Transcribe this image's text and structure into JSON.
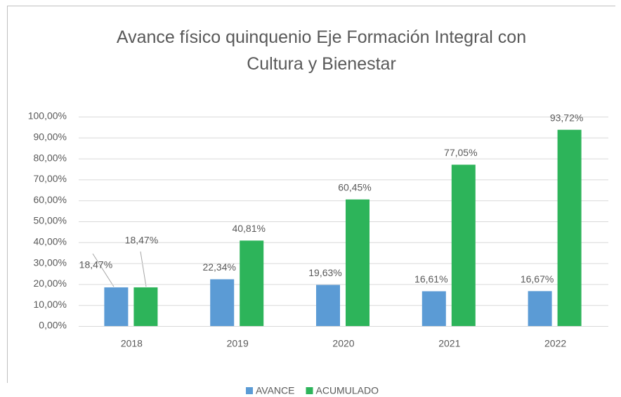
{
  "chart_data": {
    "type": "bar",
    "title": "Avance físico quinquenio Eje Formación Integral con Cultura y Bienestar",
    "categories": [
      "2018",
      "2019",
      "2020",
      "2021",
      "2022"
    ],
    "series": [
      {
        "name": "AVANCE",
        "color": "#5b9bd5",
        "values": [
          18.47,
          22.34,
          19.63,
          16.61,
          16.67
        ],
        "value_labels": [
          "18,47%",
          "22,34%",
          "19,63%",
          "16,61%",
          "16,67%"
        ]
      },
      {
        "name": "ACUMULADO",
        "color": "#2db45a",
        "values": [
          18.47,
          40.81,
          60.45,
          77.05,
          93.72
        ],
        "value_labels": [
          "18,47%",
          "40,81%",
          "60,45%",
          "77,05%",
          "93,72%"
        ]
      }
    ],
    "ylim": [
      0,
      100
    ],
    "yticks": [
      {
        "value": 0,
        "label": "0,00%"
      },
      {
        "value": 10,
        "label": "10,00%"
      },
      {
        "value": 20,
        "label": "20,00%"
      },
      {
        "value": 30,
        "label": "30,00%"
      },
      {
        "value": 40,
        "label": "40,00%"
      },
      {
        "value": 50,
        "label": "50,00%"
      },
      {
        "value": 60,
        "label": "60,00%"
      },
      {
        "value": 70,
        "label": "70,00%"
      },
      {
        "value": 80,
        "label": "80,00%"
      },
      {
        "value": 90,
        "label": "90,00%"
      },
      {
        "value": 100,
        "label": "100,00%"
      }
    ],
    "grid": true,
    "legend": "bottom"
  }
}
